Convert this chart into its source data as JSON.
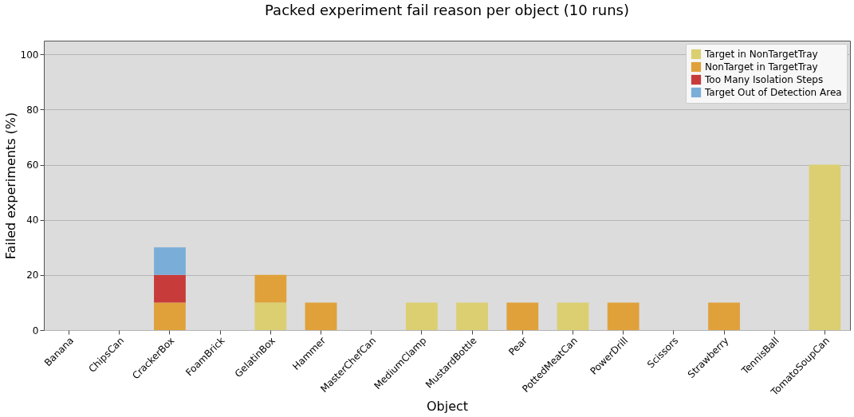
{
  "chart_data": {
    "type": "bar",
    "title": "Packed experiment fail reason per object (10 runs)",
    "xlabel": "Object",
    "ylabel": "Failed experiments (%)",
    "categories": [
      "Banana",
      "ChipsCan",
      "CrackerBox",
      "FoamBrick",
      "GelatinBox",
      "Hammer",
      "MasterChefCan",
      "MediumClamp",
      "MustardBottle",
      "Pear",
      "PottedMeatCan",
      "PowerDrill",
      "Scissors",
      "Strawberry",
      "TennisBall",
      "TomatoSoupCan"
    ],
    "series": [
      {
        "name": "Target in NonTargetTray",
        "color": "#dbcf72",
        "values": [
          0,
          0,
          0,
          0,
          10,
          0,
          0,
          10,
          10,
          0,
          10,
          0,
          0,
          0,
          0,
          60
        ]
      },
      {
        "name": "NonTarget in TargetTray",
        "color": "#e0a13a",
        "values": [
          0,
          0,
          10,
          0,
          10,
          10,
          0,
          0,
          0,
          10,
          0,
          10,
          0,
          10,
          0,
          0
        ]
      },
      {
        "name": "Too Many Isolation Steps",
        "color": "#c83b3b",
        "values": [
          0,
          0,
          10,
          0,
          0,
          0,
          0,
          0,
          0,
          0,
          0,
          0,
          0,
          0,
          0,
          0
        ]
      },
      {
        "name": "Target Out of Detection Area",
        "color": "#7aadd8",
        "values": [
          0,
          0,
          10,
          0,
          0,
          0,
          0,
          0,
          0,
          0,
          0,
          0,
          0,
          0,
          0,
          0
        ]
      }
    ],
    "stacked": true,
    "ylim": [
      0,
      105
    ],
    "yticks": [
      0,
      20,
      40,
      60,
      80,
      100
    ],
    "grid": "y",
    "legend": "top right"
  }
}
